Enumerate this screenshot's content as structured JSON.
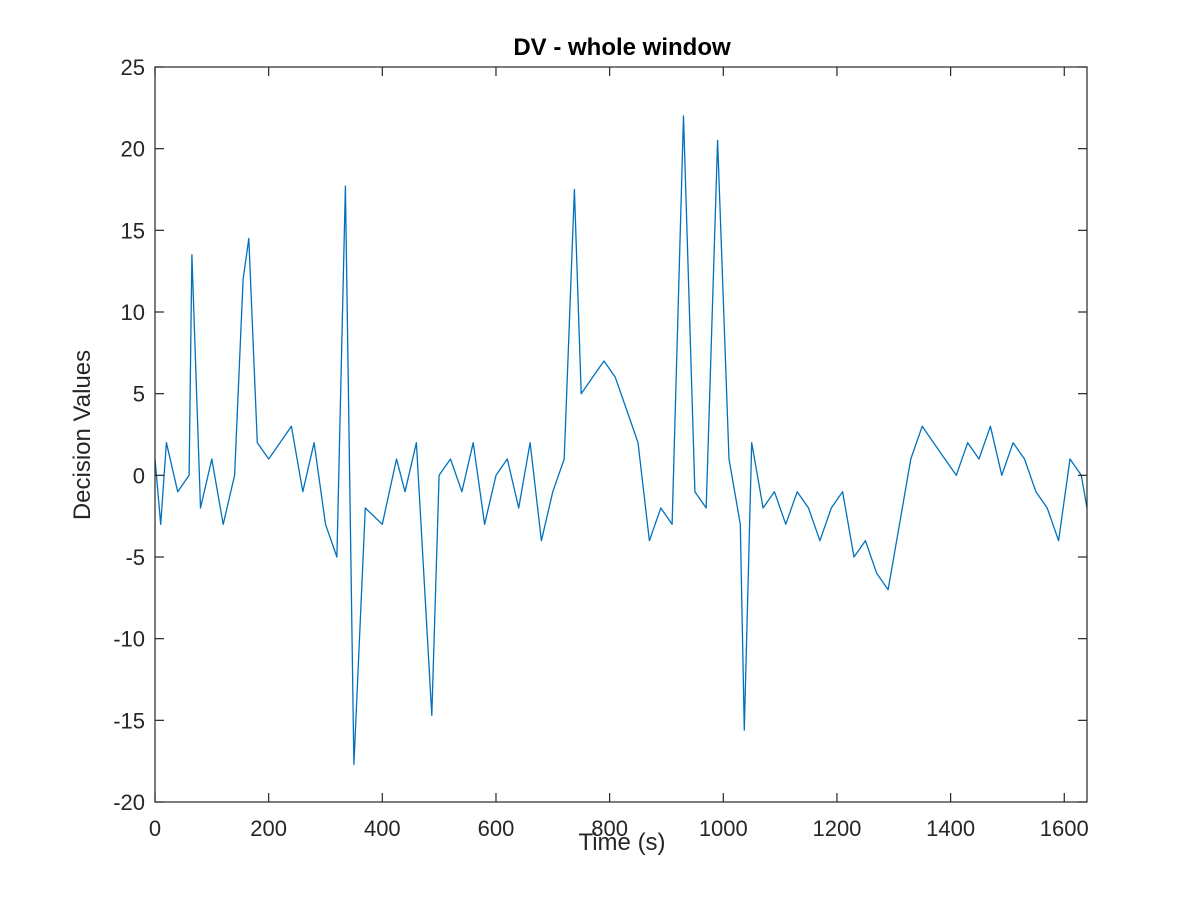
{
  "chart_data": {
    "type": "line",
    "title": "DV - whole window",
    "xlabel": "Time (s)",
    "ylabel": "Decision Values",
    "xlim": [
      0,
      1640
    ],
    "ylim": [
      -20,
      25
    ],
    "xticks": [
      0,
      200,
      400,
      600,
      800,
      1000,
      1200,
      1400,
      1600
    ],
    "yticks": [
      -20,
      -15,
      -10,
      -5,
      0,
      5,
      10,
      15,
      20,
      25
    ],
    "grid": false,
    "colors": {
      "line": "#0072BD",
      "axes": "#262626"
    },
    "series": [
      {
        "x": [
          0,
          10,
          20,
          40,
          60,
          65,
          80,
          100,
          120,
          140,
          155,
          165,
          180,
          200,
          220,
          240,
          260,
          280,
          300,
          320,
          335,
          350,
          370,
          400,
          425,
          440,
          460,
          487,
          500,
          520,
          540,
          560,
          580,
          600,
          620,
          640,
          660,
          680,
          700,
          720,
          738,
          750,
          770,
          790,
          810,
          830,
          850,
          870,
          890,
          910,
          930,
          950,
          970,
          990,
          1010,
          1030,
          1037,
          1050,
          1070,
          1090,
          1110,
          1130,
          1150,
          1170,
          1190,
          1210,
          1230,
          1250,
          1270,
          1290,
          1310,
          1330,
          1350,
          1370,
          1390,
          1410,
          1430,
          1450,
          1470,
          1490,
          1510,
          1530,
          1550,
          1570,
          1590,
          1610,
          1630,
          1640
        ],
        "y": [
          1,
          -3,
          2,
          -1,
          0,
          13.5,
          -2,
          1,
          -3,
          0,
          12,
          14.5,
          2,
          1,
          2,
          3,
          -1,
          2,
          -3,
          -5,
          17.7,
          -17.7,
          -2,
          -3,
          1,
          -1,
          2,
          -14.7,
          0,
          1,
          -1,
          2,
          -3,
          0,
          1,
          -2,
          2,
          -4,
          -1,
          1,
          17.5,
          5,
          6,
          7,
          6,
          4,
          2,
          -4,
          -2,
          -3,
          22,
          -1,
          -2,
          20.5,
          1,
          -3,
          -15.6,
          2,
          -2,
          -1,
          -3,
          -1,
          -2,
          -4,
          -2,
          -1,
          -5,
          -4,
          -6,
          -7,
          -3,
          1,
          3,
          2,
          1,
          0,
          2,
          1,
          3,
          0,
          2,
          1,
          -1,
          -2,
          -4,
          1,
          0,
          -2
        ]
      }
    ]
  }
}
